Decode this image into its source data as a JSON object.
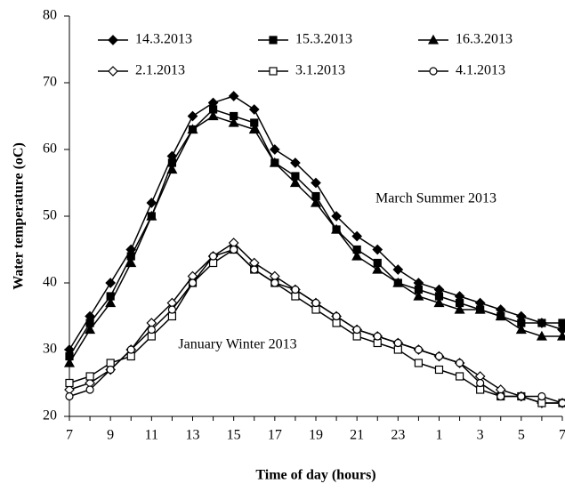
{
  "chart_data": {
    "type": "line",
    "y_label": "Water temperature (oC)",
    "x_label": "Time of day (hours)",
    "annotations": [
      "March Summer 2013",
      "January Winter 2013"
    ],
    "categories": [
      "7",
      null,
      "9",
      null,
      "11",
      null,
      "13",
      null,
      "15",
      null,
      "17",
      null,
      "19",
      null,
      "21",
      null,
      "23",
      null,
      "1",
      null,
      "3",
      null,
      "5",
      null,
      "7"
    ],
    "ylim": [
      20,
      80
    ],
    "yticks": [
      20,
      30,
      40,
      50,
      60,
      70,
      80
    ],
    "grid": false,
    "legend": "top",
    "series": [
      {
        "name": "14.3.2013",
        "color": "#000000",
        "marker": "diamond",
        "filled": true,
        "values": [
          30,
          35,
          40,
          45,
          52,
          59,
          65,
          67,
          68,
          66,
          60,
          58,
          55,
          50,
          47,
          45,
          42,
          40,
          39,
          38,
          37,
          36,
          35,
          34,
          33
        ]
      },
      {
        "name": "15.3.2013",
        "color": "#000000",
        "marker": "square",
        "filled": true,
        "values": [
          29,
          34,
          38,
          44,
          50,
          58,
          63,
          66,
          65,
          64,
          58,
          56,
          53,
          48,
          45,
          43,
          40,
          39,
          38,
          37,
          36,
          35,
          34,
          34,
          34
        ]
      },
      {
        "name": "16.3.2013",
        "color": "#000000",
        "marker": "triangle",
        "filled": true,
        "values": [
          28,
          33,
          37,
          43,
          50,
          57,
          63,
          65,
          64,
          63,
          58,
          55,
          52,
          48,
          44,
          42,
          40,
          38,
          37,
          36,
          36,
          35,
          33,
          32,
          32
        ]
      },
      {
        "name": "2.1.2013",
        "color": "#000000",
        "marker": "diamond",
        "filled": false,
        "values": [
          24,
          25,
          27,
          30,
          34,
          37,
          41,
          44,
          46,
          43,
          41,
          39,
          37,
          35,
          33,
          32,
          31,
          30,
          29,
          28,
          26,
          24,
          23,
          22,
          22
        ]
      },
      {
        "name": "3.1.2013",
        "color": "#000000",
        "marker": "square",
        "filled": false,
        "values": [
          25,
          26,
          28,
          29,
          32,
          35,
          40,
          43,
          45,
          42,
          40,
          38,
          36,
          34,
          32,
          31,
          30,
          28,
          27,
          26,
          24,
          23,
          23,
          22,
          22
        ]
      },
      {
        "name": "4.1.2013",
        "color": "#000000",
        "marker": "circle",
        "filled": false,
        "values": [
          23,
          24,
          27,
          30,
          33,
          36,
          40,
          44,
          45,
          42,
          40,
          39,
          37,
          35,
          33,
          32,
          31,
          30,
          29,
          28,
          25,
          23,
          23,
          23,
          22
        ]
      }
    ]
  }
}
